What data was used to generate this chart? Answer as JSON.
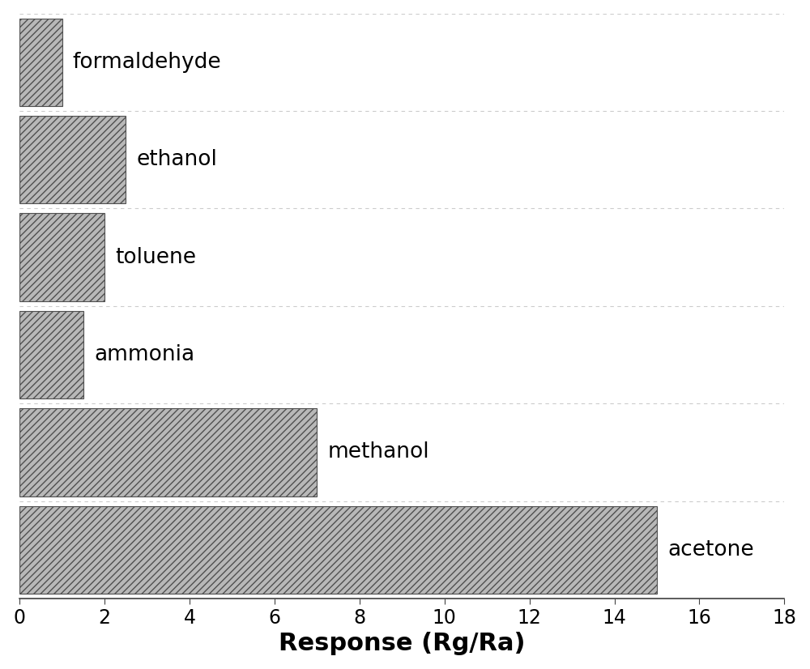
{
  "categories_top_to_bottom": [
    "formaldehyde",
    "ethanol",
    "toluene",
    "ammonia",
    "methanol",
    "acetone"
  ],
  "values_top_to_bottom": [
    1.0,
    2.5,
    2.0,
    1.5,
    7.0,
    15.0
  ],
  "bar_color": "#b8b8b8",
  "hatch_pattern": "////",
  "xlabel": "Response (Rg/Ra)",
  "xlim": [
    0,
    18
  ],
  "xticks": [
    0,
    2,
    4,
    6,
    8,
    10,
    12,
    14,
    16,
    18
  ],
  "xlabel_fontsize": 22,
  "tick_fontsize": 17,
  "label_fontsize": 19,
  "background_color": "#ffffff",
  "bar_edge_color": "#505050",
  "grid_color": "#cccccc",
  "bar_height": 0.9
}
